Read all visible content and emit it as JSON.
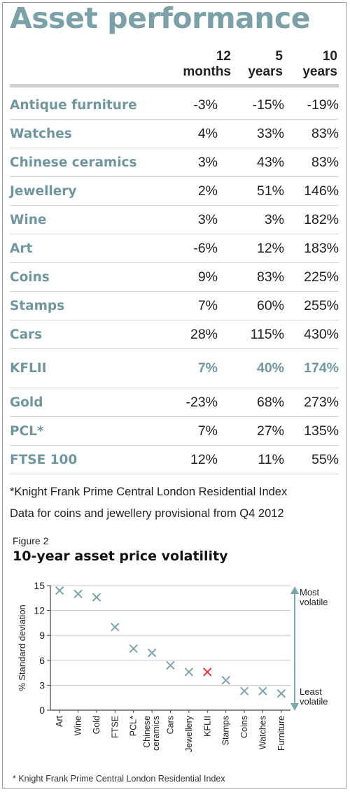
{
  "title": "Asset performance",
  "columns": [
    {
      "line1": "12",
      "line2": "months"
    },
    {
      "line1": "5",
      "line2": "years"
    },
    {
      "line1": "10",
      "line2": "years"
    }
  ],
  "rows": [
    {
      "name": "Antique furniture",
      "m12": "-3%",
      "y5": "-15%",
      "y10": "-19%"
    },
    {
      "name": "Watches",
      "m12": "4%",
      "y5": "33%",
      "y10": "83%"
    },
    {
      "name": "Chinese ceramics",
      "m12": "3%",
      "y5": "43%",
      "y10": "83%"
    },
    {
      "name": "Jewellery",
      "m12": "2%",
      "y5": "51%",
      "y10": "146%"
    },
    {
      "name": "Wine",
      "m12": "3%",
      "y5": "3%",
      "y10": "182%"
    },
    {
      "name": "Art",
      "m12": "-6%",
      "y5": "12%",
      "y10": "183%"
    },
    {
      "name": "Coins",
      "m12": "9%",
      "y5": "83%",
      "y10": "225%"
    },
    {
      "name": "Stamps",
      "m12": "7%",
      "y5": "60%",
      "y10": "255%"
    },
    {
      "name": "Cars",
      "m12": "28%",
      "y5": "115%",
      "y10": "430%"
    },
    {
      "name": "KFLII",
      "m12": "7%",
      "y5": "40%",
      "y10": "174%",
      "highlight": true
    },
    {
      "name": "Gold",
      "m12": "-23%",
      "y5": "68%",
      "y10": "273%"
    },
    {
      "name": "PCL*",
      "m12": "7%",
      "y5": "27%",
      "y10": "135%"
    },
    {
      "name": "FTSE 100",
      "m12": "12%",
      "y5": "11%",
      "y10": "55%"
    }
  ],
  "notes": [
    "*Knight Frank Prime Central London Residential Index",
    "Data for coins and jewellery provisional from Q4 2012"
  ],
  "figure_label": "Figure 2",
  "footnote": "* Knight Frank Prime Central London Residential Index",
  "chart_data": {
    "type": "scatter",
    "title": "10-year asset price volatility",
    "ylabel": "% Standard deviation",
    "xlabel": "",
    "ylim": [
      0,
      15
    ],
    "yticks": [
      0,
      3,
      6,
      9,
      12,
      15
    ],
    "grid": true,
    "categories": [
      "Art",
      "Wine",
      "Gold",
      "FTSE",
      "PCL*",
      "Chinese ceramics",
      "Cars",
      "Jewellery",
      "KFLII",
      "Stamps",
      "Coins",
      "Watches",
      "Furniture"
    ],
    "values": [
      14.4,
      14.0,
      13.6,
      10.0,
      7.4,
      6.9,
      5.4,
      4.6,
      4.6,
      3.6,
      2.3,
      2.3,
      2.0
    ],
    "highlight_category": "KFLII",
    "marker_color": "#7aa6ae",
    "highlight_color": "#e8303a",
    "annotation_top": [
      "Most",
      "volatile"
    ],
    "annotation_bottom": [
      "Least",
      "volatile"
    ]
  }
}
